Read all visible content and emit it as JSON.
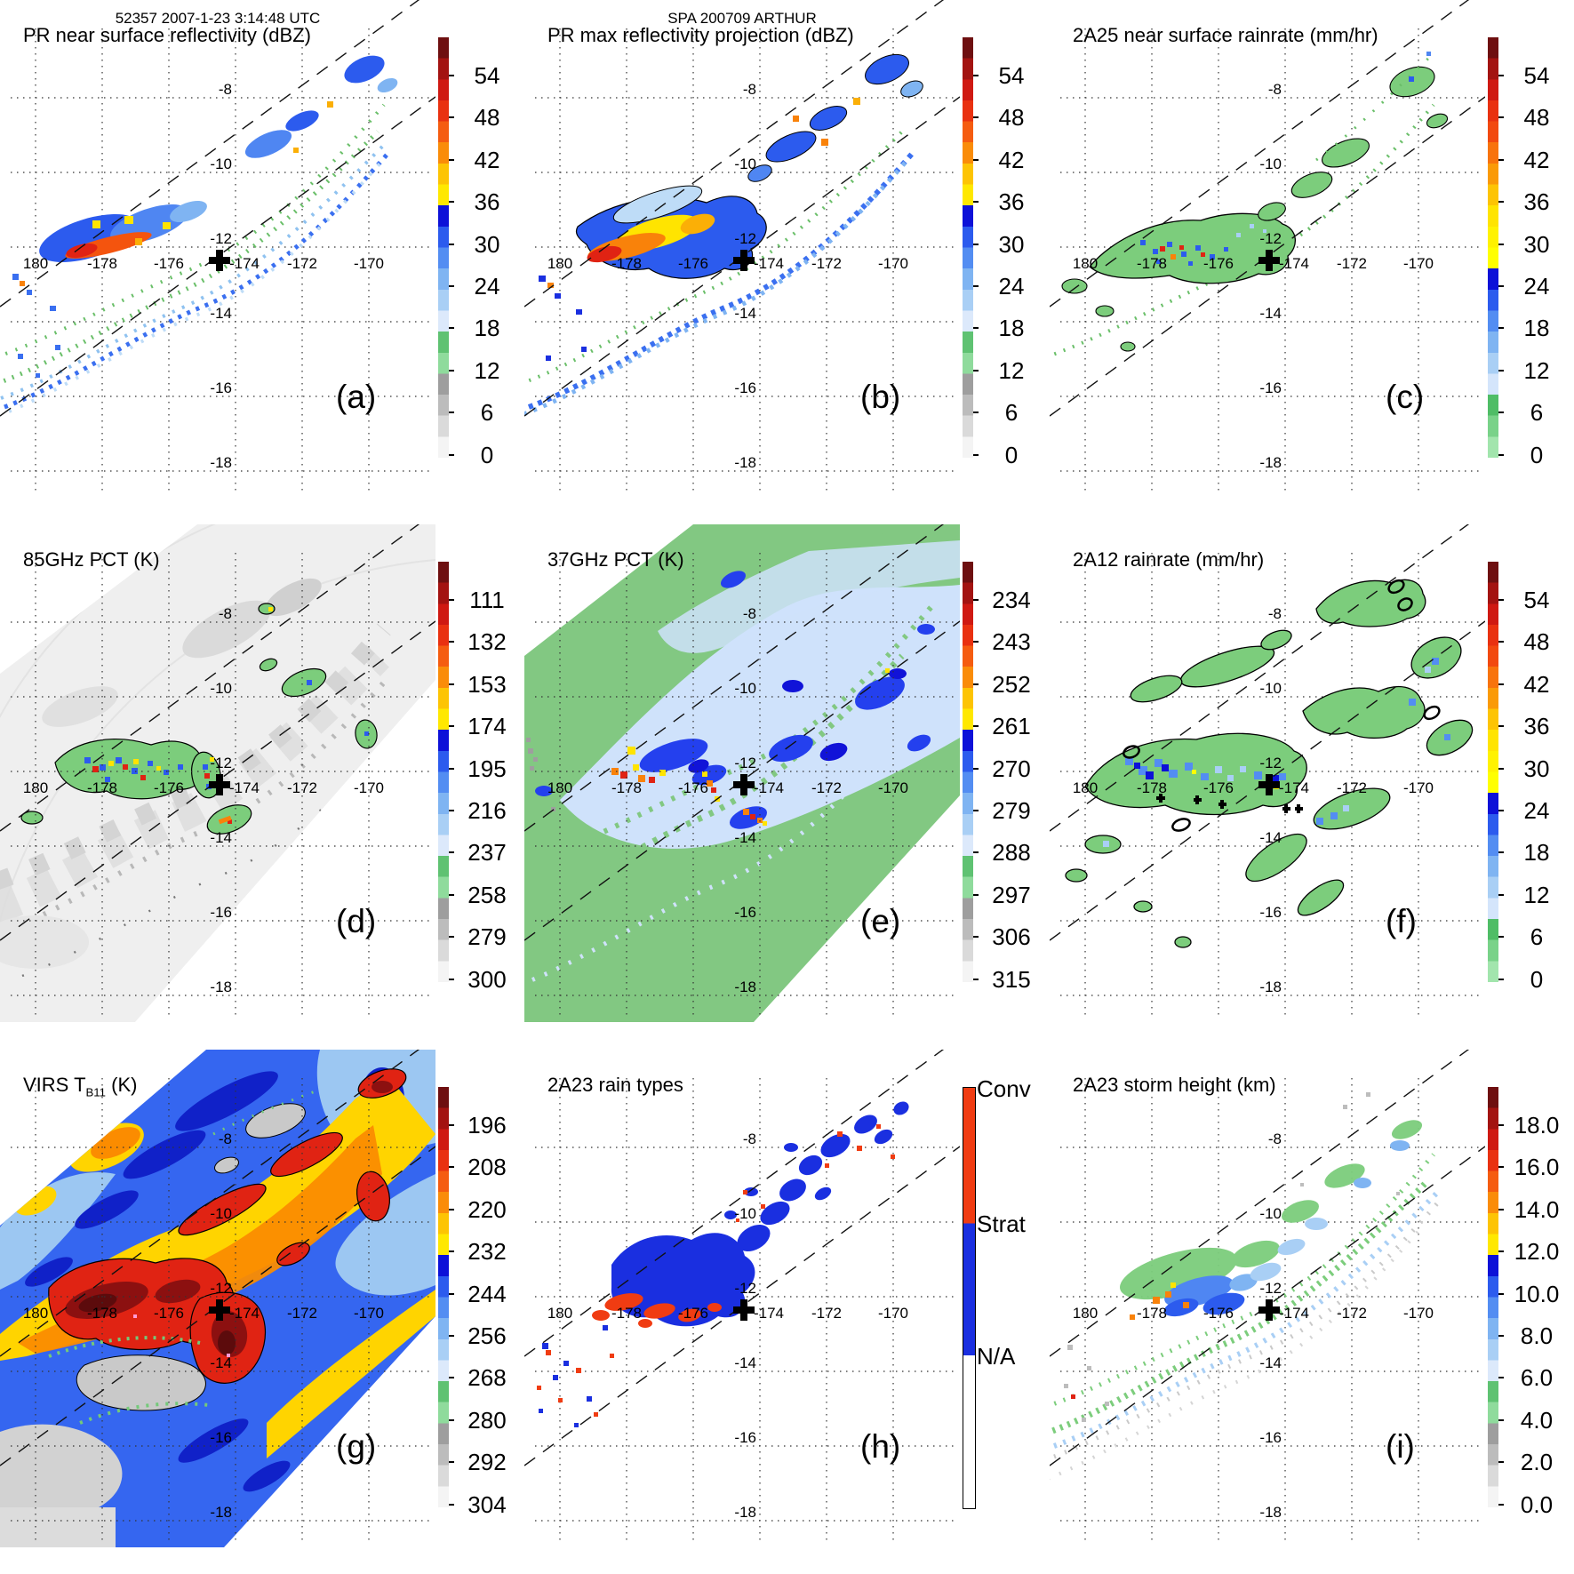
{
  "header": {
    "left": "52357 2007-1-23 3:14:48 UTC",
    "center": "SPA 200709 ARTHUR"
  },
  "axis": {
    "lon_labels": [
      "180",
      "-178",
      "-176",
      "-174",
      "-172",
      "-170"
    ],
    "lat_labels": [
      "-8",
      "-10",
      "-12",
      "-14",
      "-16",
      "-18"
    ]
  },
  "palettes": {
    "refl": [
      "#6e0f10",
      "#a31311",
      "#cf1912",
      "#e93110",
      "#f55c10",
      "#fa8c09",
      "#fdc404",
      "#ffe800",
      "#0d11d8",
      "#2c5bee",
      "#538df2",
      "#7fb4f2",
      "#a9cff5",
      "#dce9fb",
      "#5fc272",
      "#8fdb9c",
      "#9e9e9e",
      "#bcbcbc",
      "#dadada",
      "#f4f4f4"
    ],
    "rain": [
      "#6e0f10",
      "#a31311",
      "#cf1912",
      "#e93110",
      "#f2490f",
      "#f8730c",
      "#fa9a07",
      "#fdc404",
      "#ffe400",
      "#fff200",
      "#ffff00",
      "#0d11d8",
      "#2c5bee",
      "#538df2",
      "#7fb4f2",
      "#a9cff5",
      "#d4e5fb",
      "#4fbd66",
      "#79d289",
      "#a2e5ad"
    ],
    "raintype": {
      "segments": [
        {
          "label": "Conv",
          "color": "#f03c12",
          "to": 0.322
        },
        {
          "label": "Strat",
          "color": "#1a2fe0",
          "to": 0.636
        },
        {
          "label": "N/A",
          "color": "#ffffff",
          "to": 1.0
        }
      ]
    }
  },
  "panels": [
    {
      "id": "a",
      "title_pre": "PR near surface reflectivity (dBZ)",
      "title_sub": "",
      "title_post": "",
      "letter": "(a)",
      "palette": "refl",
      "cb_ticks": [
        "54",
        "48",
        "42",
        "36",
        "30",
        "24",
        "18",
        "12",
        "6",
        "0"
      ]
    },
    {
      "id": "b",
      "title_pre": "PR max reflectivity projection (dBZ)",
      "title_sub": "",
      "title_post": "",
      "letter": "(b)",
      "palette": "refl",
      "cb_ticks": [
        "54",
        "48",
        "42",
        "36",
        "30",
        "24",
        "18",
        "12",
        "6",
        "0"
      ]
    },
    {
      "id": "c",
      "title_pre": "2A25 near surface rainrate (mm/hr)",
      "title_sub": "",
      "title_post": "",
      "letter": "(c)",
      "palette": "rain",
      "cb_ticks": [
        "54",
        "48",
        "42",
        "36",
        "30",
        "24",
        "18",
        "12",
        "6",
        "0"
      ]
    },
    {
      "id": "d",
      "title_pre": "85GHz PCT (K)",
      "title_sub": "",
      "title_post": "",
      "letter": "(d)",
      "palette": "refl",
      "cb_ticks": [
        "111",
        "132",
        "153",
        "174",
        "195",
        "216",
        "237",
        "258",
        "279",
        "300"
      ]
    },
    {
      "id": "e",
      "title_pre": "37GHz PCT (K)",
      "title_sub": "",
      "title_post": "",
      "letter": "(e)",
      "palette": "refl",
      "cb_ticks": [
        "234",
        "243",
        "252",
        "261",
        "270",
        "279",
        "288",
        "297",
        "306",
        "315"
      ]
    },
    {
      "id": "f",
      "title_pre": "2A12 rainrate (mm/hr)",
      "title_sub": "",
      "title_post": "",
      "letter": "(f)",
      "palette": "rain",
      "cb_ticks": [
        "54",
        "48",
        "42",
        "36",
        "30",
        "24",
        "18",
        "12",
        "6",
        "0"
      ]
    },
    {
      "id": "g",
      "title_pre": "VIRS T",
      "title_sub": "B11",
      "title_post": " (K)",
      "letter": "(g)",
      "palette": "refl",
      "cb_ticks": [
        "196",
        "208",
        "220",
        "232",
        "244",
        "256",
        "268",
        "280",
        "292",
        "304"
      ]
    },
    {
      "id": "h",
      "title_pre": "2A23 rain types",
      "title_sub": "",
      "title_post": "",
      "letter": "(h)",
      "palette": "raintype",
      "cb_ticks": []
    },
    {
      "id": "i",
      "title_pre": "2A23 storm height (km)",
      "title_sub": "",
      "title_post": "",
      "letter": "(i)",
      "palette": "refl",
      "cb_ticks": [
        "18.0",
        "16.0",
        "14.0",
        "12.0",
        "10.0",
        "8.0",
        "6.0",
        "4.0",
        "2.0",
        "0.0"
      ]
    }
  ],
  "chart_data": [
    {
      "panel": "a",
      "type": "heatmap",
      "title": "PR near surface reflectivity (dBZ)",
      "units": "dBZ",
      "colorbar_ticks": [
        54,
        48,
        42,
        36,
        30,
        24,
        18,
        12,
        6,
        0
      ],
      "lon_ticks": [
        180,
        -178,
        -176,
        -174,
        -172,
        -170
      ],
      "lat_ticks": [
        -8,
        -10,
        -12,
        -14,
        -16,
        -18
      ],
      "swath": "narrow TRMM PR swath running SW-NE between dashed edge lines",
      "features": "scattered 18-35 dBZ echoes (green/blue) along swath; intense convective band 40-54 dBZ (orange/red/yellow) near lon -178.5 to -175.5, lat -13; weaker cells near lon -173 to -169, lat -8 to -10",
      "marker": {
        "lon": -174.4,
        "lat": -12.4
      }
    },
    {
      "panel": "b",
      "type": "heatmap",
      "title": "PR max reflectivity projection (dBZ)",
      "units": "dBZ",
      "colorbar_ticks": [
        54,
        48,
        42,
        36,
        30,
        24,
        18,
        12,
        6,
        0
      ],
      "features": "same swath as (a) but column-maximum reflectivity: broader, black-contoured echo regions; large 36-48 dBZ (yellow/orange) core near lon -178 to -175.5, lat -12.8 to -13.4",
      "marker": {
        "lon": -174.4,
        "lat": -12.4
      }
    },
    {
      "panel": "c",
      "type": "heatmap",
      "title": "2A25 near surface rainrate (mm/hr)",
      "units": "mm/hr",
      "colorbar_ticks": [
        54,
        48,
        42,
        36,
        30,
        24,
        18,
        12,
        6,
        0
      ],
      "features": "light rain under 8 mm/hr (green, black-contoured) over most of the rain area; embedded 12-48 mm/hr cells (blue/red speckles) near lon -178 to -175.5, lat -13",
      "marker": {
        "lon": -174.4,
        "lat": -12.4
      }
    },
    {
      "panel": "d",
      "type": "heatmap",
      "title": "85GHz PCT (K)",
      "units": "K",
      "colorbar_ticks": [
        111,
        132,
        153,
        174,
        195,
        216,
        237,
        258,
        279,
        300
      ],
      "swath": "wide TMI swath covering most of the domain",
      "features": "warm background 258-300 K (light gray/white); ice-scattering depressions 195-237 K (green/blue blobs, black contours); minima below 150 K (orange/red pixels) in convective cores near lon -178 to -175.5 lat -13 and lon -173.5 lat -14",
      "marker": {
        "lon": -174.4,
        "lat": -12.4
      }
    },
    {
      "panel": "e",
      "type": "heatmap",
      "title": "37GHz PCT (K)",
      "units": "K",
      "colorbar_ticks": [
        234,
        243,
        252,
        261,
        270,
        279,
        288,
        297,
        306,
        315
      ],
      "features": "background ~288-297 K (green); moist/rainy areas 270-285 K (pale to dark blue) along swath; strong scattering 234-261 K (yellow/orange/red pixels) in cores near lon -178 to -176 lat -13, lon -174.3 lat -12.7 and lon -173.5 lat -14",
      "marker": {
        "lon": -174.4,
        "lat": -12.4
      }
    },
    {
      "panel": "f",
      "type": "heatmap",
      "title": "2A12 rainrate (mm/hr)",
      "units": "mm/hr",
      "colorbar_ticks": [
        54,
        48,
        42,
        36,
        30,
        24,
        18,
        12,
        6,
        0
      ],
      "features": "wide TMI swath; smooth light-rain areas under 8 mm/hr (green, black outlines) with embedded 12-30 mm/hr (blue) patches along lat -12.5 to -14; small cross and ellipse overlay symbols mark cell centers",
      "marker": {
        "lon": -174.4,
        "lat": -12.4
      }
    },
    {
      "panel": "g",
      "type": "heatmap",
      "title": "VIRS TB11 (K)",
      "units": "K",
      "colorbar_ticks": [
        196,
        208,
        220,
        232,
        244,
        256,
        268,
        280,
        292,
        304
      ],
      "features": "cold cloud tops 196-232 K (red/orange/yellow) over much of the swath; coldest shields below 200 K (dark red, black contours) near lon -178.5 to -173.5, lat -12.5 to -14; mid clouds 232-256 K (blue); clear/warm areas 268-304 K (green/gray) in lower-left and center",
      "marker": {
        "lon": -174.4,
        "lat": -12.4
      }
    },
    {
      "panel": "h",
      "type": "categorical-map",
      "title": "2A23 rain types",
      "categories": [
        "Conv",
        "Strat",
        "N/A"
      ],
      "category_colors": [
        "#f03c12",
        "#1a2fe0",
        "#ffffff"
      ],
      "features": "mostly stratiform rain (blue) along the PR swath with embedded convective cells (orange-red) concentrated near lon -178.5 to -176, lat -13, plus scattered convective specks northeast and southwest",
      "marker": {
        "lon": -174.4,
        "lat": -12.4
      }
    },
    {
      "panel": "i",
      "type": "heatmap",
      "title": "2A23 storm height (km)",
      "units": "km",
      "colorbar_ticks": [
        18,
        16,
        14,
        12,
        10,
        8,
        6,
        4,
        2,
        0
      ],
      "features": "echo tops mostly 5-10 km (green and blue speckles) along the swath; deepest towers 12-16 km (orange/yellow pixels) in the convective band near lon -178 to -176, lat -13; shallow 2-4 km echoes (gray) on swath edges",
      "marker": {
        "lon": -174.4,
        "lat": -12.4
      }
    }
  ]
}
